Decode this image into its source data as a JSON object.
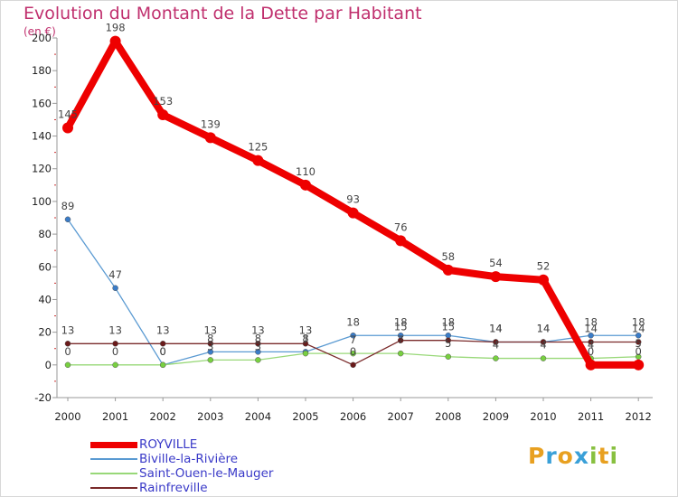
{
  "header": {
    "title": "Evolution du Montant de la Dette par Habitant",
    "subtitle": "(en €)"
  },
  "colors": {
    "title": "#c0306e",
    "legend_text": "#3a3ac8",
    "axis": "#999999"
  },
  "logo": {
    "letters": [
      "P",
      "r",
      "o",
      "x",
      "i",
      "t",
      "i"
    ],
    "colors": [
      "#e8a020",
      "#3aa0d8",
      "#e8a020",
      "#3aa0d8",
      "#88c040",
      "#e8a020",
      "#88c040"
    ]
  },
  "chart_data": {
    "type": "line",
    "title": "Evolution du Montant de la Dette par Habitant",
    "ylabel": "(en €)",
    "x": [
      "2000",
      "2001",
      "2002",
      "2003",
      "2004",
      "2005",
      "2006",
      "2007",
      "2008",
      "2009",
      "2010",
      "2011",
      "2012"
    ],
    "ylim": [
      -20,
      200
    ],
    "yticks": [
      "-20",
      "0",
      "20",
      "40",
      "60",
      "80",
      "100",
      "120",
      "140",
      "160",
      "180",
      "200"
    ],
    "legend_position": "bottom-left",
    "series": [
      {
        "name": "ROYVILLE",
        "color": "#ee0000",
        "marker_color": "#ee0000",
        "values": [
          145,
          198,
          153,
          139,
          125,
          110,
          93,
          76,
          58,
          54,
          52,
          0,
          0
        ],
        "labels": [
          "145",
          "198",
          "153",
          "139",
          "125",
          "110",
          "93",
          "76",
          "58",
          "54",
          "52",
          "0",
          "0"
        ]
      },
      {
        "name": "Biville-la-Rivière",
        "color": "#5a9ad2",
        "marker_color": "#3a7cc8",
        "values": [
          89,
          47,
          0,
          8,
          8,
          8,
          18,
          18,
          18,
          14,
          14,
          18,
          18
        ],
        "labels": [
          "89",
          "47",
          "0",
          "8",
          "8",
          "8",
          "18",
          "18",
          "18",
          "14",
          "14",
          "18",
          "18"
        ]
      },
      {
        "name": "Saint-Ouen-le-Mauger",
        "color": "#98d878",
        "marker_color": "#78d040",
        "values": [
          0,
          0,
          0,
          3,
          3,
          7,
          7,
          7,
          5,
          4,
          4,
          4,
          5
        ],
        "labels": [
          "0",
          "0",
          "0",
          "3",
          "3",
          "7",
          "7",
          "7",
          "5",
          "4",
          "4",
          "4",
          "5"
        ]
      },
      {
        "name": "Rainfreville",
        "color": "#7a2a2a",
        "marker_color": "#6a1a1a",
        "values": [
          13,
          13,
          13,
          13,
          13,
          13,
          0,
          15,
          15,
          14,
          14,
          14,
          14
        ],
        "labels": [
          "13",
          "13",
          "13",
          "13",
          "13",
          "13",
          "0",
          "15",
          "15",
          "14",
          "14",
          "14",
          "14"
        ]
      }
    ]
  }
}
